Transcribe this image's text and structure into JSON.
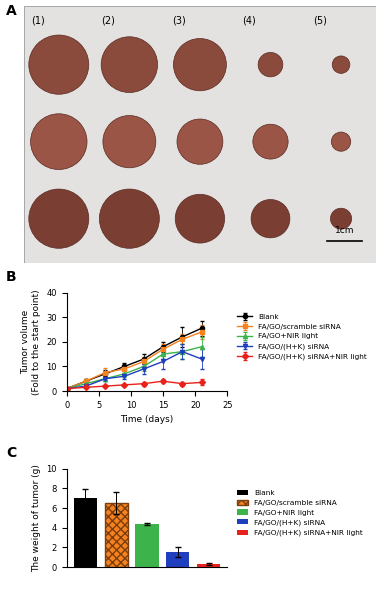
{
  "photo": {
    "panel_label": "A",
    "group_labels": [
      "(1)",
      "(2)",
      "(3)",
      "(4)",
      "(5)"
    ],
    "scale_bar": "1cm"
  },
  "chart_data": [
    {
      "type": "line",
      "annotations": [
        "B"
      ],
      "x_label": "Time (days)",
      "y_label": "Tumor volume\n(Fold to the start point)",
      "x": [
        0,
        3,
        6,
        9,
        12,
        15,
        18,
        21
      ],
      "xlim": [
        0,
        25
      ],
      "xticks": [
        0,
        5,
        10,
        15,
        20,
        25
      ],
      "ylim": [
        0,
        40
      ],
      "yticks": [
        0,
        10,
        20,
        30,
        40
      ],
      "legend": "center left",
      "series": [
        {
          "name": "Blank",
          "color": "#000000",
          "marker": "o",
          "line_style": "solid",
          "values": [
            1,
            4,
            7,
            10,
            13,
            18,
            22,
            25.5
          ],
          "errors": [
            0,
            1,
            1.5,
            1.5,
            2,
            2,
            4,
            3
          ]
        },
        {
          "name": "FA/GO/scramble siRNA",
          "color": "#f5821f",
          "marker": "s",
          "line_style": "solid",
          "values": [
            1,
            4,
            7.5,
            9,
            12,
            17,
            21,
            24
          ],
          "errors": [
            0,
            1,
            2,
            1.5,
            2,
            2,
            2,
            3
          ]
        },
        {
          "name": "FA/GO+NIR light",
          "color": "#3cb44b",
          "marker": "^",
          "line_style": "solid",
          "values": [
            1,
            3,
            5,
            7,
            10,
            15,
            16,
            18
          ],
          "errors": [
            0,
            1,
            1,
            1.5,
            2,
            2,
            3,
            4
          ]
        },
        {
          "name": "FA/GO/(H+K) siRNA",
          "color": "#1f3fbf",
          "marker": "v",
          "line_style": "solid",
          "values": [
            1,
            2,
            5,
            6,
            9,
            12,
            16,
            13
          ],
          "errors": [
            0,
            0.5,
            1,
            1,
            2,
            3,
            3,
            4
          ]
        },
        {
          "name": "FA/GO/(H+K) siRNA+NIR light",
          "color": "#e8221b",
          "marker": "D",
          "line_style": "solid",
          "values": [
            1,
            1.5,
            2,
            2.5,
            3,
            4,
            3,
            3.5
          ],
          "errors": [
            0,
            0.3,
            0.5,
            0.5,
            0.8,
            0.8,
            0.8,
            1.2
          ]
        }
      ]
    },
    {
      "type": "bar",
      "annotations": [
        "C"
      ],
      "y_label": "The weight of tumor (g)",
      "categories": [
        "Blank",
        "FA/GO/scramble siRNA",
        "FA/GO+NIR light",
        "FA/GO/(H+K) siRNA",
        "FA/GO/(H+K) siRNA+NIR light"
      ],
      "values": [
        7.0,
        6.5,
        4.4,
        1.5,
        0.3
      ],
      "errors": [
        0.9,
        1.1,
        0.1,
        0.5,
        0.1
      ],
      "colors": [
        "#000000",
        "#f5821f",
        "#3cb44b",
        "#1f3fbf",
        "#e8221b"
      ],
      "ylim": [
        0,
        10
      ],
      "yticks": [
        0,
        2,
        4,
        6,
        8,
        10
      ],
      "tick_labels": "y",
      "legend": "center left"
    }
  ]
}
